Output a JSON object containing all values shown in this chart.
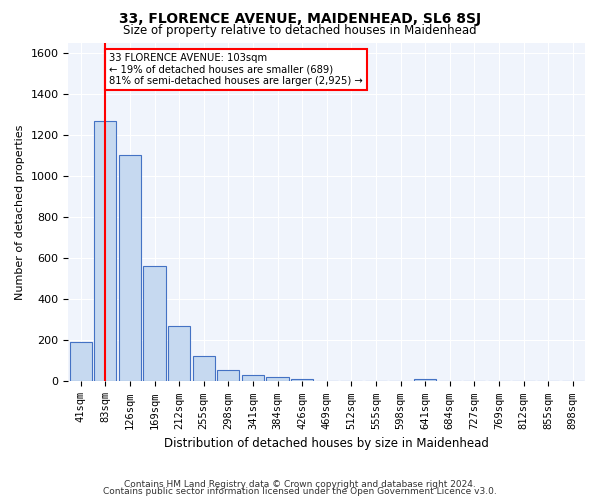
{
  "title1": "33, FLORENCE AVENUE, MAIDENHEAD, SL6 8SJ",
  "title2": "Size of property relative to detached houses in Maidenhead",
  "xlabel": "Distribution of detached houses by size in Maidenhead",
  "ylabel": "Number of detached properties",
  "categories": [
    "41sqm",
    "83sqm",
    "126sqm",
    "169sqm",
    "212sqm",
    "255sqm",
    "298sqm",
    "341sqm",
    "384sqm",
    "426sqm",
    "469sqm",
    "512sqm",
    "555sqm",
    "598sqm",
    "641sqm",
    "684sqm",
    "727sqm",
    "769sqm",
    "812sqm",
    "855sqm",
    "898sqm"
  ],
  "values": [
    190,
    1270,
    1100,
    560,
    270,
    125,
    55,
    30,
    20,
    10,
    0,
    0,
    0,
    0,
    10,
    0,
    0,
    0,
    0,
    0,
    0
  ],
  "bar_color": "#c6d9f0",
  "bar_edge_color": "#4472c4",
  "vline_x": 1,
  "vline_color": "red",
  "annotation_text": "33 FLORENCE AVENUE: 103sqm\n← 19% of detached houses are smaller (689)\n81% of semi-detached houses are larger (2,925) →",
  "annotation_box_color": "white",
  "annotation_box_edge": "red",
  "ylim": [
    0,
    1650
  ],
  "yticks": [
    0,
    200,
    400,
    600,
    800,
    1000,
    1200,
    1400,
    1600
  ],
  "footer1": "Contains HM Land Registry data © Crown copyright and database right 2024.",
  "footer2": "Contains public sector information licensed under the Open Government Licence v3.0.",
  "bg_color": "#f0f4fc"
}
